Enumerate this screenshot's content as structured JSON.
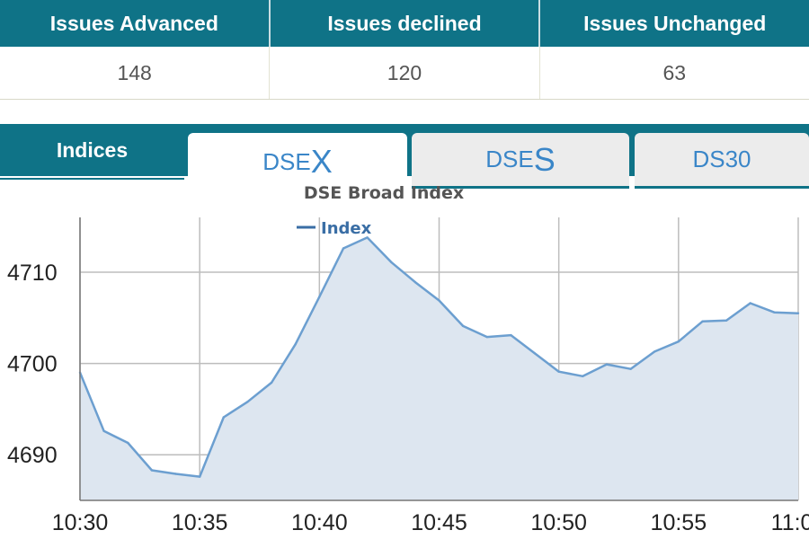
{
  "stats": {
    "headers": [
      "Issues Advanced",
      "Issues declined",
      "Issues Unchanged"
    ],
    "values": [
      "148",
      "120",
      "63"
    ]
  },
  "tabs": {
    "section_label": "Indices",
    "items": [
      {
        "prefix": "DSE",
        "suffix": "X",
        "active": true
      },
      {
        "prefix": "DSE",
        "suffix": "S",
        "active": false
      },
      {
        "prefix": "DS30",
        "suffix": "",
        "active": false
      }
    ]
  },
  "colors": {
    "header": "#0f7387",
    "line": "#6c9fd0",
    "area": "#dde6f0",
    "tab_text": "#3a86c8"
  },
  "chart_data": {
    "type": "area",
    "title": "DSE Broad Index",
    "legend": [
      "Index"
    ],
    "x_ticks": [
      "10:30",
      "10:35",
      "10:40",
      "10:45",
      "10:50",
      "10:55",
      "11:00"
    ],
    "y_ticks": [
      "4690",
      "4700",
      "4710"
    ],
    "xlim": [
      "10:30",
      "11:00"
    ],
    "ylim": [
      4685,
      4716
    ],
    "grid": true,
    "series": [
      {
        "name": "Index",
        "x": [
          "10:30",
          "10:31",
          "10:32",
          "10:33",
          "10:34",
          "10:35",
          "10:36",
          "10:37",
          "10:38",
          "10:39",
          "10:40",
          "10:41",
          "10:42",
          "10:43",
          "10:44",
          "10:45",
          "10:46",
          "10:47",
          "10:48",
          "10:49",
          "10:50",
          "10:51",
          "10:52",
          "10:53",
          "10:54",
          "10:55",
          "10:56",
          "10:57",
          "10:58",
          "10:59",
          "11:00"
        ],
        "values": [
          4699.0,
          4692.6,
          4691.3,
          4688.3,
          4687.9,
          4687.6,
          4694.1,
          4695.8,
          4697.9,
          4702.1,
          4707.3,
          4712.6,
          4713.8,
          4711.1,
          4708.9,
          4706.9,
          4704.1,
          4702.9,
          4703.1,
          4701.1,
          4699.1,
          4698.6,
          4699.9,
          4699.4,
          4701.3,
          4702.4,
          4704.6,
          4704.7,
          4706.6,
          4705.6,
          4705.5
        ]
      }
    ]
  }
}
